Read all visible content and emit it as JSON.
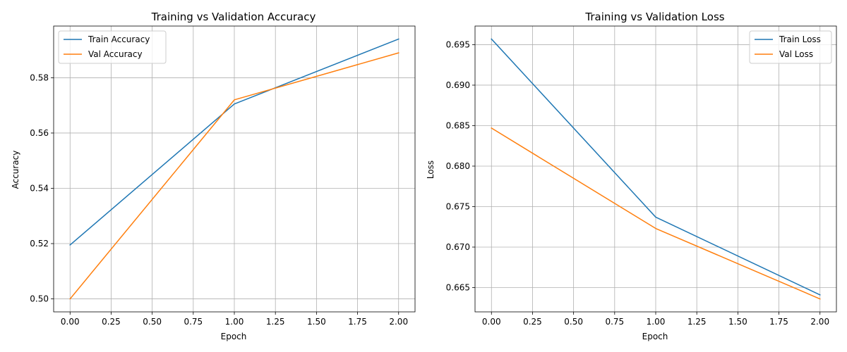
{
  "chart_data": [
    {
      "type": "line",
      "title": "Training vs Validation Accuracy",
      "xlabel": "Epoch",
      "ylabel": "Accuracy",
      "x": [
        0,
        1,
        2
      ],
      "series": [
        {
          "name": "Train Accuracy",
          "values": [
            0.5195,
            0.5705,
            0.594
          ],
          "color": "#1f77b4"
        },
        {
          "name": "Val Accuracy",
          "values": [
            0.5,
            0.572,
            0.589
          ],
          "color": "#ff7f0e"
        }
      ],
      "xlim": [
        -0.1,
        2.1
      ],
      "ylim": [
        0.4953,
        0.5987
      ],
      "xticks": [
        0.0,
        0.25,
        0.5,
        0.75,
        1.0,
        1.25,
        1.5,
        1.75,
        2.0
      ],
      "xtick_labels": [
        "0.00",
        "0.25",
        "0.50",
        "0.75",
        "1.00",
        "1.25",
        "1.50",
        "1.75",
        "2.00"
      ],
      "yticks": [
        0.5,
        0.52,
        0.54,
        0.56,
        0.58
      ],
      "ytick_labels": [
        "0.50",
        "0.52",
        "0.54",
        "0.56",
        "0.58"
      ],
      "grid": true,
      "legend_position": "upper-left"
    },
    {
      "type": "line",
      "title": "Training vs Validation Loss",
      "xlabel": "Epoch",
      "ylabel": "Loss",
      "x": [
        0,
        1,
        2
      ],
      "series": [
        {
          "name": "Train Loss",
          "values": [
            0.6957,
            0.6737,
            0.6641
          ],
          "color": "#1f77b4"
        },
        {
          "name": "Val Loss",
          "values": [
            0.6847,
            0.6723,
            0.6636
          ],
          "color": "#ff7f0e"
        }
      ],
      "xlim": [
        -0.1,
        2.1
      ],
      "ylim": [
        0.662,
        0.6973
      ],
      "xticks": [
        0.0,
        0.25,
        0.5,
        0.75,
        1.0,
        1.25,
        1.5,
        1.75,
        2.0
      ],
      "xtick_labels": [
        "0.00",
        "0.25",
        "0.50",
        "0.75",
        "1.00",
        "1.25",
        "1.50",
        "1.75",
        "2.00"
      ],
      "yticks": [
        0.665,
        0.67,
        0.675,
        0.68,
        0.685,
        0.69,
        0.695
      ],
      "ytick_labels": [
        "0.665",
        "0.670",
        "0.675",
        "0.680",
        "0.685",
        "0.690",
        "0.695"
      ],
      "grid": true,
      "legend_position": "upper-right"
    }
  ]
}
